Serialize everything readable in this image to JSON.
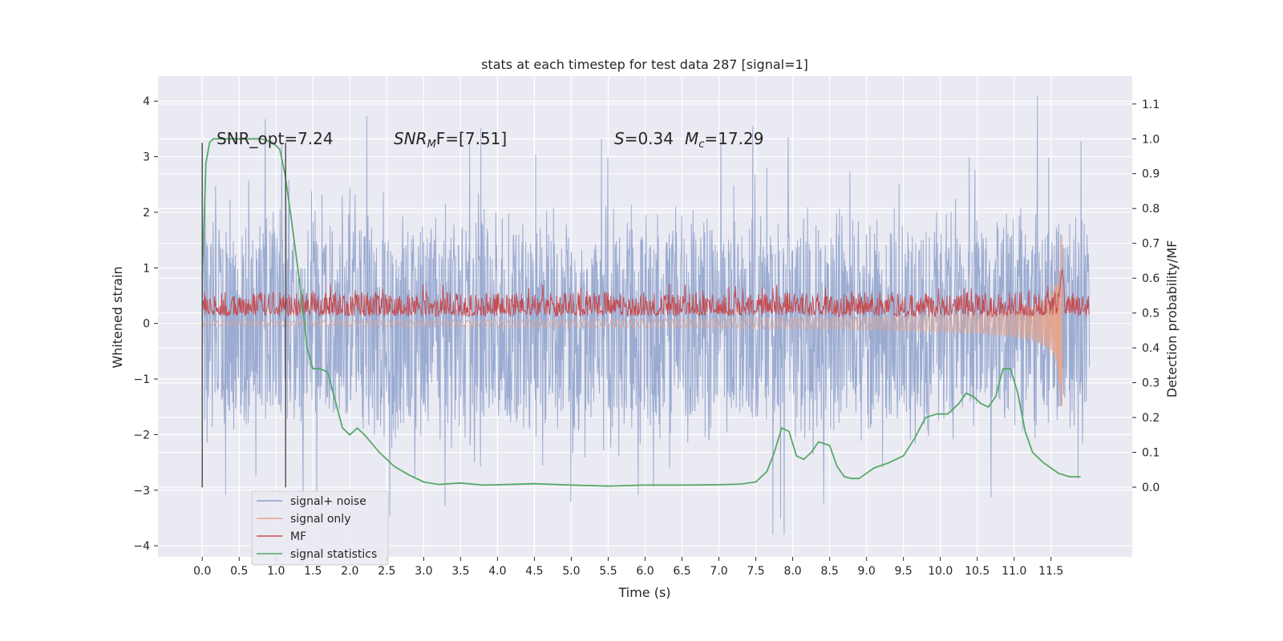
{
  "chart_data": {
    "type": "line",
    "title": "stats at each timestep for test data 287 [signal=1]",
    "xlabel": "Time (s)",
    "ylabel": "Whitened strain",
    "ylabel_right": "Detection probability/MF",
    "xlim": [
      -0.6,
      12.6
    ],
    "ylim": [
      -4.2,
      4.45
    ],
    "ylim_right": [
      -0.2,
      1.18
    ],
    "x_ticks": [
      "0.0",
      "0.5",
      "1.0",
      "1.5",
      "2.0",
      "2.5",
      "3.0",
      "3.5",
      "4.0",
      "4.5",
      "5.0",
      "5.5",
      "6.0",
      "6.5",
      "7.0",
      "7.5",
      "8.0",
      "8.5",
      "9.0",
      "9.5",
      "10.0",
      "10.5",
      "11.0",
      "11.5"
    ],
    "y_ticks": [
      "4",
      "3",
      "2",
      "1",
      "0",
      "−1",
      "−2",
      "−3",
      "−4"
    ],
    "y_ticks_right": [
      "1.1",
      "1.0",
      "0.9",
      "0.8",
      "0.7",
      "0.6",
      "0.5",
      "0.4",
      "0.3",
      "0.2",
      "0.1",
      "0.0"
    ],
    "grid": true,
    "legend_position": "lower-left",
    "annotations": {
      "snr_opt": "SNR_opt=7.24",
      "snr_mf_var": "SNR",
      "snr_mf_sub": "M",
      "snr_mf_rest": "F=[7.51]",
      "s_var": "S",
      "s_rest": "=0.34",
      "mc_var": "M",
      "mc_sub": "c",
      "mc_rest": "=17.29"
    },
    "markers": {
      "x": [
        0.0,
        1.13
      ],
      "y_range": [
        -2.95,
        3.25
      ]
    },
    "series": [
      {
        "name": "signal+ noise",
        "color": "#8da0cb",
        "kind": "noise",
        "x_range": [
          0.0,
          12.02
        ],
        "typical_band": [
          -1.5,
          1.4
        ],
        "extremes": [
          -3.8,
          4.1
        ]
      },
      {
        "name": "signal only",
        "color": "#e8a38a",
        "kind": "chirp",
        "x_range": [
          0.0,
          11.65
        ],
        "peak_amplitude": 1.6
      },
      {
        "name": "MF",
        "color": "#c44e52",
        "kind": "mf",
        "axis": "right",
        "x_range": [
          0.0,
          12.02
        ],
        "baseline": [
          0.49,
          0.56
        ],
        "peak": {
          "x": 11.65,
          "y": 0.63
        }
      },
      {
        "name": "signal statistics",
        "color": "#55a868",
        "axis": "right",
        "x": [
          0.0,
          0.05,
          0.1,
          0.15,
          0.2,
          0.3,
          0.5,
          0.8,
          0.95,
          1.05,
          1.12,
          1.2,
          1.3,
          1.38,
          1.42,
          1.5,
          1.6,
          1.7,
          1.8,
          1.9,
          2.0,
          2.1,
          2.2,
          2.4,
          2.6,
          2.8,
          3.0,
          3.2,
          3.5,
          3.8,
          4.0,
          4.5,
          5.0,
          5.5,
          6.0,
          6.5,
          7.0,
          7.3,
          7.5,
          7.65,
          7.75,
          7.85,
          7.95,
          8.05,
          8.15,
          8.25,
          8.35,
          8.5,
          8.6,
          8.7,
          8.8,
          8.9,
          9.0,
          9.1,
          9.3,
          9.5,
          9.65,
          9.8,
          9.95,
          10.1,
          10.25,
          10.35,
          10.45,
          10.55,
          10.65,
          10.75,
          10.85,
          10.95,
          11.05,
          11.15,
          11.25,
          11.4,
          11.6,
          11.75,
          11.9
        ],
        "values": [
          0.6,
          0.93,
          0.99,
          1.0,
          1.0,
          1.0,
          1.0,
          1.0,
          0.99,
          0.97,
          0.9,
          0.78,
          0.62,
          0.48,
          0.4,
          0.34,
          0.34,
          0.33,
          0.25,
          0.17,
          0.15,
          0.17,
          0.15,
          0.1,
          0.06,
          0.035,
          0.015,
          0.008,
          0.012,
          0.006,
          0.007,
          0.01,
          0.006,
          0.003,
          0.006,
          0.006,
          0.007,
          0.009,
          0.015,
          0.045,
          0.1,
          0.17,
          0.16,
          0.09,
          0.08,
          0.1,
          0.13,
          0.12,
          0.06,
          0.03,
          0.025,
          0.025,
          0.04,
          0.055,
          0.07,
          0.09,
          0.14,
          0.2,
          0.21,
          0.21,
          0.24,
          0.27,
          0.26,
          0.24,
          0.23,
          0.26,
          0.34,
          0.34,
          0.27,
          0.16,
          0.1,
          0.07,
          0.04,
          0.03,
          0.03
        ]
      }
    ]
  }
}
